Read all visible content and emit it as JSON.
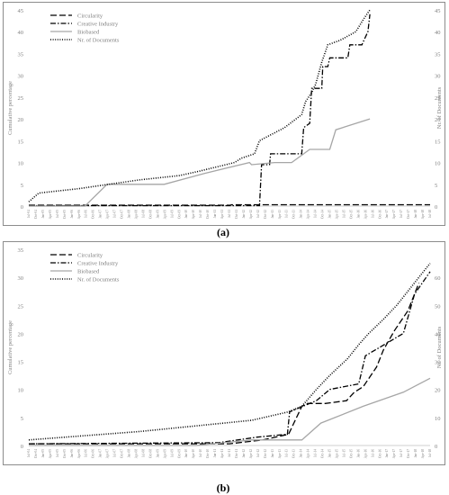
{
  "captions": [
    "(a)",
    "(b)"
  ],
  "chart_data": [
    {
      "type": "line",
      "panel": "a",
      "ylabel_left": "Cumulative percentage",
      "ylabel_right": "Nr. of Documents",
      "ylim_left": [
        0,
        45
      ],
      "yticks_left": [
        "0",
        "5",
        "10",
        "15",
        "20",
        "25",
        "30",
        "35",
        "40",
        "45"
      ],
      "ylim_right": [
        0,
        45
      ],
      "yticks_right": [
        "0",
        "5",
        "10",
        "15",
        "20",
        "25",
        "30",
        "35",
        "40",
        "45"
      ],
      "grid": false,
      "legend_position": "top-left",
      "x_start": "Jul-04",
      "x_end": "Jul-18",
      "x_tick_count": 57,
      "series": [
        {
          "name": "Circularity",
          "axis": "left",
          "style": "longdash",
          "points": [
            [
              0,
              0.2
            ],
            [
              50,
              0.2
            ],
            [
              100,
              0.2
            ],
            [
              201,
              0.2
            ],
            [
              202,
              0.3
            ],
            [
              286,
              0.3
            ],
            [
              287,
              0.3
            ],
            [
              400,
              0.3
            ]
          ]
        },
        {
          "name": "Creative Industry",
          "axis": "left",
          "style": "dashdot",
          "points": [
            [
              0,
              0.1
            ],
            [
              230,
              0.1
            ],
            [
              232,
              9.5
            ],
            [
              240,
              9.5
            ],
            [
              241,
              12
            ],
            [
              272,
              12
            ],
            [
              274,
              18
            ],
            [
              280,
              19
            ],
            [
              282,
              27
            ],
            [
              292,
              27
            ],
            [
              293,
              32
            ],
            [
              298,
              32
            ],
            [
              300,
              34
            ],
            [
              318,
              34
            ],
            [
              320,
              37
            ],
            [
              332,
              37
            ],
            [
              334,
              38
            ],
            [
              338,
              40
            ],
            [
              340,
              44
            ]
          ]
        },
        {
          "name": "Biobased",
          "axis": "left",
          "style": "solid",
          "points": [
            [
              0,
              0
            ],
            [
              56,
              0
            ],
            [
              78,
              5
            ],
            [
              135,
              5
            ],
            [
              175,
              7.5
            ],
            [
              220,
              10
            ],
            [
              222,
              9.5
            ],
            [
              245,
              10
            ],
            [
              262,
              10
            ],
            [
              280,
              13
            ],
            [
              300,
              13
            ],
            [
              306,
              17.5
            ],
            [
              340,
              20
            ]
          ]
        },
        {
          "name": "Nr. of Documents",
          "axis": "right",
          "style": "dotted",
          "points": [
            [
              0,
              1
            ],
            [
              10,
              3
            ],
            [
              50,
              4
            ],
            [
              110,
              6
            ],
            [
              150,
              7
            ],
            [
              170,
              8
            ],
            [
              205,
              10
            ],
            [
              212,
              11
            ],
            [
              225,
              12
            ],
            [
              230,
              15
            ],
            [
              255,
              18
            ],
            [
              272,
              21
            ],
            [
              276,
              24
            ],
            [
              282,
              26
            ],
            [
              286,
              28
            ],
            [
              292,
              33
            ],
            [
              298,
              37
            ],
            [
              310,
              38
            ],
            [
              326,
              40
            ],
            [
              334,
              43
            ],
            [
              340,
              45
            ]
          ]
        }
      ]
    },
    {
      "type": "line",
      "panel": "b",
      "ylabel_left": "Cumulative percentage",
      "ylabel_right": "Nr. of Documents",
      "ylim_left": [
        0,
        35
      ],
      "yticks_left": [
        "0",
        "5",
        "10",
        "15",
        "20",
        "25",
        "30",
        "35"
      ],
      "ylim_right": [
        0,
        70
      ],
      "yticks_right": [
        "0",
        "10",
        "20",
        "30",
        "40",
        "50",
        "60"
      ],
      "grid": false,
      "legend_position": "top-left",
      "x_start": "Jul-04",
      "x_end": "Jul-18",
      "x_tick_count": 57,
      "series": [
        {
          "name": "Circularity",
          "axis": "left",
          "style": "longdash",
          "points": [
            [
              0,
              0.3
            ],
            [
              180,
              0.3
            ],
            [
              210,
              1
            ],
            [
              233,
              2
            ],
            [
              245,
              7
            ],
            [
              250,
              7.5
            ],
            [
              266,
              7.5
            ],
            [
              285,
              8
            ],
            [
              292,
              9.5
            ],
            [
              300,
              10.5
            ],
            [
              312,
              14
            ],
            [
              318,
              17
            ],
            [
              328,
              20.5
            ],
            [
              340,
              24
            ],
            [
              350,
              29
            ]
          ]
        },
        {
          "name": "Creative Industry",
          "axis": "left",
          "style": "dashdot",
          "points": [
            [
              0,
              0.3
            ],
            [
              170,
              0.5
            ],
            [
              205,
              1.5
            ],
            [
              232,
              2
            ],
            [
              234,
              6
            ],
            [
              258,
              8
            ],
            [
              270,
              10
            ],
            [
              296,
              11
            ],
            [
              302,
              16
            ],
            [
              336,
              20
            ],
            [
              346,
              27
            ],
            [
              360,
              31
            ]
          ]
        },
        {
          "name": "Biobased",
          "axis": "left",
          "style": "solid",
          "points": [
            [
              0,
              0
            ],
            [
              150,
              0
            ],
            [
              200,
              1
            ],
            [
              245,
              1
            ],
            [
              262,
              4
            ],
            [
              300,
              7
            ],
            [
              336,
              9.5
            ],
            [
              360,
              12
            ]
          ]
        },
        {
          "name": "Nr. of Documents",
          "axis": "right",
          "style": "dotted",
          "points": [
            [
              0,
              2
            ],
            [
              100,
              5
            ],
            [
              200,
              9
            ],
            [
              233,
              12
            ],
            [
              245,
              14
            ],
            [
              258,
              20
            ],
            [
              270,
              25
            ],
            [
              286,
              31
            ],
            [
              296,
              36
            ],
            [
              305,
              40
            ],
            [
              318,
              45
            ],
            [
              330,
              50
            ],
            [
              340,
              55
            ],
            [
              350,
              60
            ],
            [
              360,
              65
            ]
          ]
        }
      ]
    }
  ]
}
